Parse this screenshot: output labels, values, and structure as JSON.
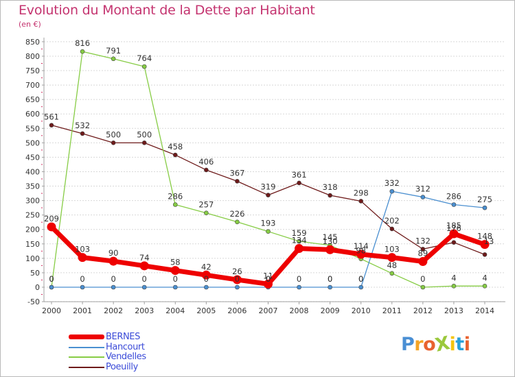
{
  "title": "Evolution du Montant de la Dette par Habitant",
  "subtitle": "(en €)",
  "brand": "ProXiti",
  "colors": {
    "title": "#c4336f",
    "legend_text": "#3b4bd8",
    "axis": "#a0a0a0",
    "grid": "#d8d8d8",
    "tick_marks": "#d03060",
    "brand": [
      "#4a8fd4",
      "#f4a425",
      "#e8622f",
      "#9bc83c",
      "#f4c40f",
      "#2aa0d8",
      "#e8622f"
    ]
  },
  "chart_data": {
    "type": "line",
    "title": "Evolution du Montant de la Dette par Habitant",
    "subtitle": "(en €)",
    "xlabel": "",
    "ylabel": "",
    "x": [
      "2000",
      "2001",
      "2002",
      "2003",
      "2004",
      "2005",
      "2006",
      "2007",
      "2008",
      "2009",
      "2010",
      "2011",
      "2012",
      "2013",
      "2014"
    ],
    "yticks": [
      -50,
      0,
      50,
      100,
      150,
      200,
      250,
      300,
      350,
      400,
      450,
      500,
      550,
      600,
      650,
      700,
      750,
      800,
      850
    ],
    "ylim": [
      -50,
      850
    ],
    "grid": "horizontal",
    "legend_position": "bottom-left",
    "series": [
      {
        "name": "Poeuilly",
        "color": "#6e1a1a",
        "values": [
          561,
          532,
          500,
          500,
          458,
          406,
          367,
          319,
          361,
          318,
          298,
          202,
          132,
          155,
          113
        ],
        "labels": [
          "561",
          "532",
          "500",
          "500",
          "458",
          "406",
          "367",
          "319",
          "361",
          "318",
          "298",
          "202",
          "132",
          "",
          ""
        ]
      },
      {
        "name": "Vendelles",
        "color": "#86cc44",
        "values": [
          0,
          816,
          791,
          764,
          286,
          257,
          226,
          193,
          159,
          145,
          98,
          48,
          0,
          4,
          4
        ],
        "labels": [
          "",
          "816",
          "791",
          "764",
          "286",
          "257",
          "226",
          "193",
          "159",
          "145",
          "98",
          "48",
          "0",
          "4",
          "4"
        ]
      },
      {
        "name": "Hancourt",
        "color": "#4a8fd0",
        "values": [
          0,
          0,
          0,
          0,
          0,
          0,
          0,
          0,
          0,
          0,
          0,
          332,
          312,
          286,
          275
        ],
        "labels": [
          "0",
          "0",
          "0",
          "0",
          "0",
          "0",
          "0",
          "0",
          "0",
          "0",
          "0",
          "332",
          "312",
          "286",
          "275"
        ]
      },
      {
        "name": "BERNES",
        "color": "#ee0000",
        "values": [
          209,
          103,
          90,
          74,
          58,
          42,
          26,
          11,
          134,
          130,
          114,
          103,
          89,
          185,
          148
        ],
        "labels": [
          "209",
          "103",
          "90",
          "74",
          "58",
          "42",
          "26",
          "11",
          "134",
          "130",
          "114",
          "103",
          "89",
          "185",
          "148"
        ]
      }
    ],
    "extra_labels": [
      "0",
      "0",
      "0",
      "0",
      "176",
      "13"
    ]
  },
  "legend": {
    "items": [
      {
        "name": "BERNES",
        "color": "#ee0000"
      },
      {
        "name": "Hancourt",
        "color": "#4a8fd0"
      },
      {
        "name": "Vendelles",
        "color": "#86cc44"
      },
      {
        "name": "Poeuilly",
        "color": "#6e1a1a"
      }
    ]
  }
}
